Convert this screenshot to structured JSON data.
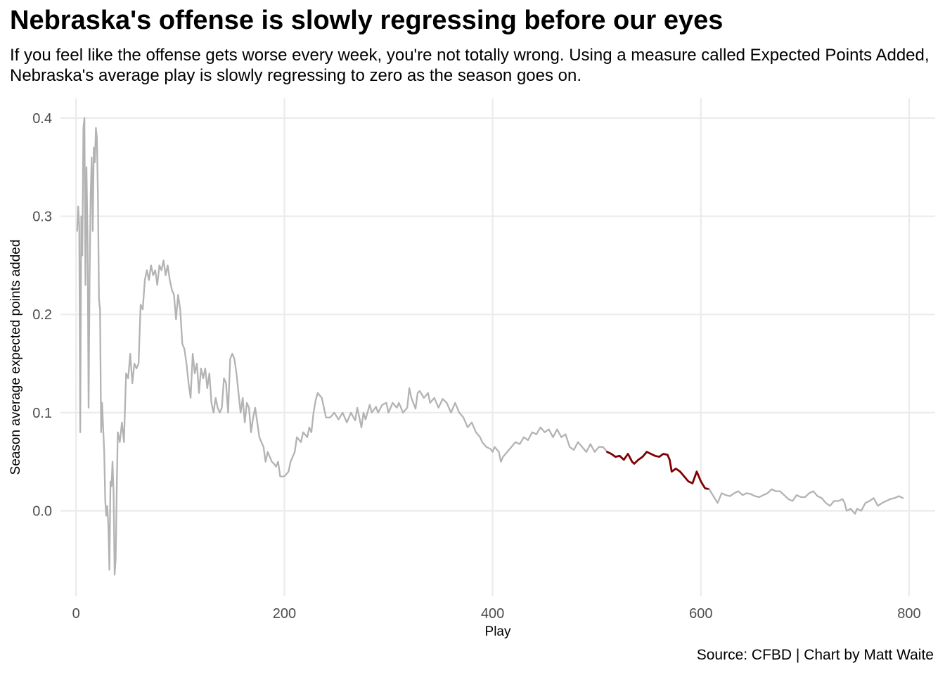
{
  "chart_data": {
    "type": "line",
    "title": "Nebraska's offense is slowly regressing before our eyes",
    "subtitle": "If you feel like the offense gets worse every week, you're not totally wrong. Using a measure called Expected Points Added, Nebraska's average play is slowly regressing to zero as the season goes on.",
    "caption": "Source: CFBD | Chart by Matt Waite",
    "xlabel": "Play",
    "ylabel": "Season average expected points added",
    "xlim": [
      -15,
      825
    ],
    "ylim": [
      -0.087,
      0.42
    ],
    "xticks": [
      0,
      200,
      400,
      600,
      800
    ],
    "xtick_labels": [
      "0",
      "200",
      "400",
      "600",
      "800"
    ],
    "yticks": [
      0.0,
      0.1,
      0.2,
      0.3,
      0.4
    ],
    "ytick_labels": [
      "0.0",
      "0.1",
      "0.2",
      "0.3",
      "0.4"
    ],
    "grid": true,
    "colors": {
      "base": "#b3b3b3",
      "highlight": "#7f0000",
      "grid": "#ebebeb"
    },
    "series": [
      {
        "role": "all plays",
        "points": [
          [
            1,
            0.285
          ],
          [
            2,
            0.31
          ],
          [
            3,
            0.29
          ],
          [
            4,
            0.08
          ],
          [
            5,
            0.3
          ],
          [
            6,
            0.26
          ],
          [
            7,
            0.39
          ],
          [
            8,
            0.4
          ],
          [
            9,
            0.23
          ],
          [
            10,
            0.35
          ],
          [
            11,
            0.28
          ],
          [
            12,
            0.105
          ],
          [
            13,
            0.24
          ],
          [
            14,
            0.32
          ],
          [
            15,
            0.36
          ],
          [
            16,
            0.285
          ],
          [
            17,
            0.37
          ],
          [
            18,
            0.355
          ],
          [
            19,
            0.39
          ],
          [
            20,
            0.38
          ],
          [
            21,
            0.32
          ],
          [
            22,
            0.215
          ],
          [
            23,
            0.205
          ],
          [
            24,
            0.08
          ],
          [
            25,
            0.11
          ],
          [
            26,
            0.085
          ],
          [
            27,
            0.06
          ],
          [
            28,
            0.01
          ],
          [
            29,
            -0.005
          ],
          [
            30,
            0.005
          ],
          [
            31,
            -0.015
          ],
          [
            32,
            -0.06
          ],
          [
            33,
            0.03
          ],
          [
            34,
            0.025
          ],
          [
            35,
            0.05
          ],
          [
            36,
            0.02
          ],
          [
            37,
            -0.065
          ],
          [
            38,
            -0.05
          ],
          [
            39,
            0.02
          ],
          [
            40,
            0.08
          ],
          [
            42,
            0.07
          ],
          [
            44,
            0.09
          ],
          [
            46,
            0.07
          ],
          [
            48,
            0.14
          ],
          [
            50,
            0.135
          ],
          [
            52,
            0.16
          ],
          [
            54,
            0.13
          ],
          [
            56,
            0.15
          ],
          [
            58,
            0.145
          ],
          [
            60,
            0.15
          ],
          [
            62,
            0.21
          ],
          [
            64,
            0.205
          ],
          [
            66,
            0.235
          ],
          [
            68,
            0.245
          ],
          [
            70,
            0.235
          ],
          [
            72,
            0.25
          ],
          [
            74,
            0.24
          ],
          [
            76,
            0.245
          ],
          [
            78,
            0.23
          ],
          [
            80,
            0.25
          ],
          [
            82,
            0.245
          ],
          [
            84,
            0.255
          ],
          [
            86,
            0.24
          ],
          [
            88,
            0.25
          ],
          [
            90,
            0.235
          ],
          [
            92,
            0.225
          ],
          [
            94,
            0.22
          ],
          [
            96,
            0.195
          ],
          [
            98,
            0.22
          ],
          [
            100,
            0.205
          ],
          [
            102,
            0.17
          ],
          [
            104,
            0.165
          ],
          [
            106,
            0.15
          ],
          [
            108,
            0.13
          ],
          [
            110,
            0.115
          ],
          [
            112,
            0.16
          ],
          [
            114,
            0.14
          ],
          [
            116,
            0.15
          ],
          [
            118,
            0.12
          ],
          [
            120,
            0.145
          ],
          [
            122,
            0.135
          ],
          [
            124,
            0.145
          ],
          [
            126,
            0.125
          ],
          [
            128,
            0.14
          ],
          [
            130,
            0.11
          ],
          [
            132,
            0.1
          ],
          [
            134,
            0.115
          ],
          [
            136,
            0.105
          ],
          [
            138,
            0.1
          ],
          [
            140,
            0.105
          ],
          [
            142,
            0.135
          ],
          [
            144,
            0.13
          ],
          [
            146,
            0.1
          ],
          [
            148,
            0.155
          ],
          [
            150,
            0.16
          ],
          [
            152,
            0.155
          ],
          [
            154,
            0.14
          ],
          [
            156,
            0.12
          ],
          [
            158,
            0.1
          ],
          [
            160,
            0.115
          ],
          [
            162,
            0.09
          ],
          [
            164,
            0.11
          ],
          [
            166,
            0.105
          ],
          [
            168,
            0.08
          ],
          [
            170,
            0.095
          ],
          [
            172,
            0.105
          ],
          [
            174,
            0.09
          ],
          [
            176,
            0.075
          ],
          [
            178,
            0.07
          ],
          [
            180,
            0.065
          ],
          [
            182,
            0.05
          ],
          [
            184,
            0.06
          ],
          [
            186,
            0.055
          ],
          [
            188,
            0.05
          ],
          [
            190,
            0.048
          ],
          [
            192,
            0.045
          ],
          [
            194,
            0.05
          ],
          [
            196,
            0.035
          ],
          [
            200,
            0.035
          ],
          [
            204,
            0.04
          ],
          [
            206,
            0.05
          ],
          [
            210,
            0.06
          ],
          [
            212,
            0.075
          ],
          [
            216,
            0.07
          ],
          [
            218,
            0.08
          ],
          [
            222,
            0.075
          ],
          [
            224,
            0.085
          ],
          [
            226,
            0.08
          ],
          [
            228,
            0.1
          ],
          [
            230,
            0.112
          ],
          [
            232,
            0.12
          ],
          [
            236,
            0.115
          ],
          [
            238,
            0.105
          ],
          [
            240,
            0.095
          ],
          [
            244,
            0.095
          ],
          [
            248,
            0.1
          ],
          [
            252,
            0.093
          ],
          [
            256,
            0.1
          ],
          [
            260,
            0.09
          ],
          [
            264,
            0.1
          ],
          [
            268,
            0.092
          ],
          [
            270,
            0.105
          ],
          [
            274,
            0.085
          ],
          [
            276,
            0.1
          ],
          [
            278,
            0.093
          ],
          [
            282,
            0.108
          ],
          [
            284,
            0.1
          ],
          [
            288,
            0.106
          ],
          [
            290,
            0.1
          ],
          [
            294,
            0.108
          ],
          [
            298,
            0.11
          ],
          [
            300,
            0.1
          ],
          [
            304,
            0.11
          ],
          [
            308,
            0.105
          ],
          [
            310,
            0.11
          ],
          [
            314,
            0.1
          ],
          [
            318,
            0.105
          ],
          [
            320,
            0.125
          ],
          [
            322,
            0.115
          ],
          [
            326,
            0.104
          ],
          [
            328,
            0.12
          ],
          [
            330,
            0.122
          ],
          [
            334,
            0.115
          ],
          [
            338,
            0.12
          ],
          [
            340,
            0.11
          ],
          [
            344,
            0.115
          ],
          [
            348,
            0.105
          ],
          [
            352,
            0.114
          ],
          [
            356,
            0.11
          ],
          [
            360,
            0.1
          ],
          [
            364,
            0.11
          ],
          [
            368,
            0.1
          ],
          [
            372,
            0.095
          ],
          [
            376,
            0.085
          ],
          [
            380,
            0.09
          ],
          [
            384,
            0.08
          ],
          [
            388,
            0.075
          ],
          [
            390,
            0.07
          ],
          [
            394,
            0.065
          ],
          [
            398,
            0.063
          ],
          [
            400,
            0.06
          ],
          [
            402,
            0.065
          ],
          [
            406,
            0.06
          ],
          [
            408,
            0.05
          ],
          [
            410,
            0.055
          ],
          [
            414,
            0.06
          ],
          [
            418,
            0.065
          ],
          [
            422,
            0.07
          ],
          [
            426,
            0.068
          ],
          [
            430,
            0.075
          ],
          [
            434,
            0.072
          ],
          [
            438,
            0.08
          ],
          [
            442,
            0.078
          ],
          [
            446,
            0.085
          ],
          [
            450,
            0.08
          ],
          [
            454,
            0.083
          ],
          [
            458,
            0.075
          ],
          [
            462,
            0.083
          ],
          [
            466,
            0.075
          ],
          [
            470,
            0.078
          ],
          [
            474,
            0.065
          ],
          [
            478,
            0.062
          ],
          [
            482,
            0.07
          ],
          [
            486,
            0.065
          ],
          [
            490,
            0.06
          ],
          [
            494,
            0.068
          ],
          [
            498,
            0.06
          ],
          [
            502,
            0.065
          ],
          [
            506,
            0.065
          ],
          [
            510,
            0.06
          ]
        ]
      },
      {
        "role": "highlighted stretch",
        "points": [
          [
            510,
            0.06
          ],
          [
            514,
            0.058
          ],
          [
            518,
            0.055
          ],
          [
            522,
            0.056
          ],
          [
            526,
            0.052
          ],
          [
            530,
            0.058
          ],
          [
            534,
            0.05
          ],
          [
            536,
            0.048
          ],
          [
            540,
            0.052
          ],
          [
            544,
            0.055
          ],
          [
            548,
            0.06
          ],
          [
            552,
            0.058
          ],
          [
            556,
            0.056
          ],
          [
            560,
            0.055
          ],
          [
            564,
            0.058
          ],
          [
            568,
            0.057
          ],
          [
            570,
            0.052
          ],
          [
            572,
            0.04
          ],
          [
            576,
            0.043
          ],
          [
            580,
            0.04
          ],
          [
            584,
            0.035
          ],
          [
            588,
            0.03
          ],
          [
            592,
            0.028
          ],
          [
            596,
            0.04
          ],
          [
            600,
            0.03
          ],
          [
            604,
            0.023
          ],
          [
            608,
            0.022
          ]
        ]
      },
      {
        "role": "all plays",
        "points": [
          [
            608,
            0.022
          ],
          [
            612,
            0.015
          ],
          [
            616,
            0.008
          ],
          [
            620,
            0.018
          ],
          [
            624,
            0.016
          ],
          [
            628,
            0.015
          ],
          [
            632,
            0.018
          ],
          [
            636,
            0.02
          ],
          [
            640,
            0.016
          ],
          [
            644,
            0.018
          ],
          [
            648,
            0.017
          ],
          [
            652,
            0.015
          ],
          [
            656,
            0.014
          ],
          [
            660,
            0.016
          ],
          [
            664,
            0.018
          ],
          [
            668,
            0.022
          ],
          [
            672,
            0.02
          ],
          [
            676,
            0.02
          ],
          [
            680,
            0.016
          ],
          [
            684,
            0.012
          ],
          [
            688,
            0.01
          ],
          [
            692,
            0.016
          ],
          [
            696,
            0.014
          ],
          [
            700,
            0.014
          ],
          [
            704,
            0.018
          ],
          [
            708,
            0.02
          ],
          [
            712,
            0.015
          ],
          [
            716,
            0.013
          ],
          [
            720,
            0.008
          ],
          [
            724,
            0.005
          ],
          [
            728,
            0.01
          ],
          [
            732,
            0.01
          ],
          [
            736,
            0.012
          ],
          [
            738,
            0.008
          ],
          [
            740,
            0.0
          ],
          [
            744,
            0.002
          ],
          [
            748,
            -0.003
          ],
          [
            750,
            0.002
          ],
          [
            754,
            0.0
          ],
          [
            758,
            0.008
          ],
          [
            762,
            0.01
          ],
          [
            766,
            0.013
          ],
          [
            770,
            0.005
          ],
          [
            774,
            0.008
          ],
          [
            778,
            0.01
          ],
          [
            782,
            0.012
          ],
          [
            786,
            0.013
          ],
          [
            790,
            0.015
          ],
          [
            794,
            0.013
          ]
        ]
      }
    ]
  }
}
